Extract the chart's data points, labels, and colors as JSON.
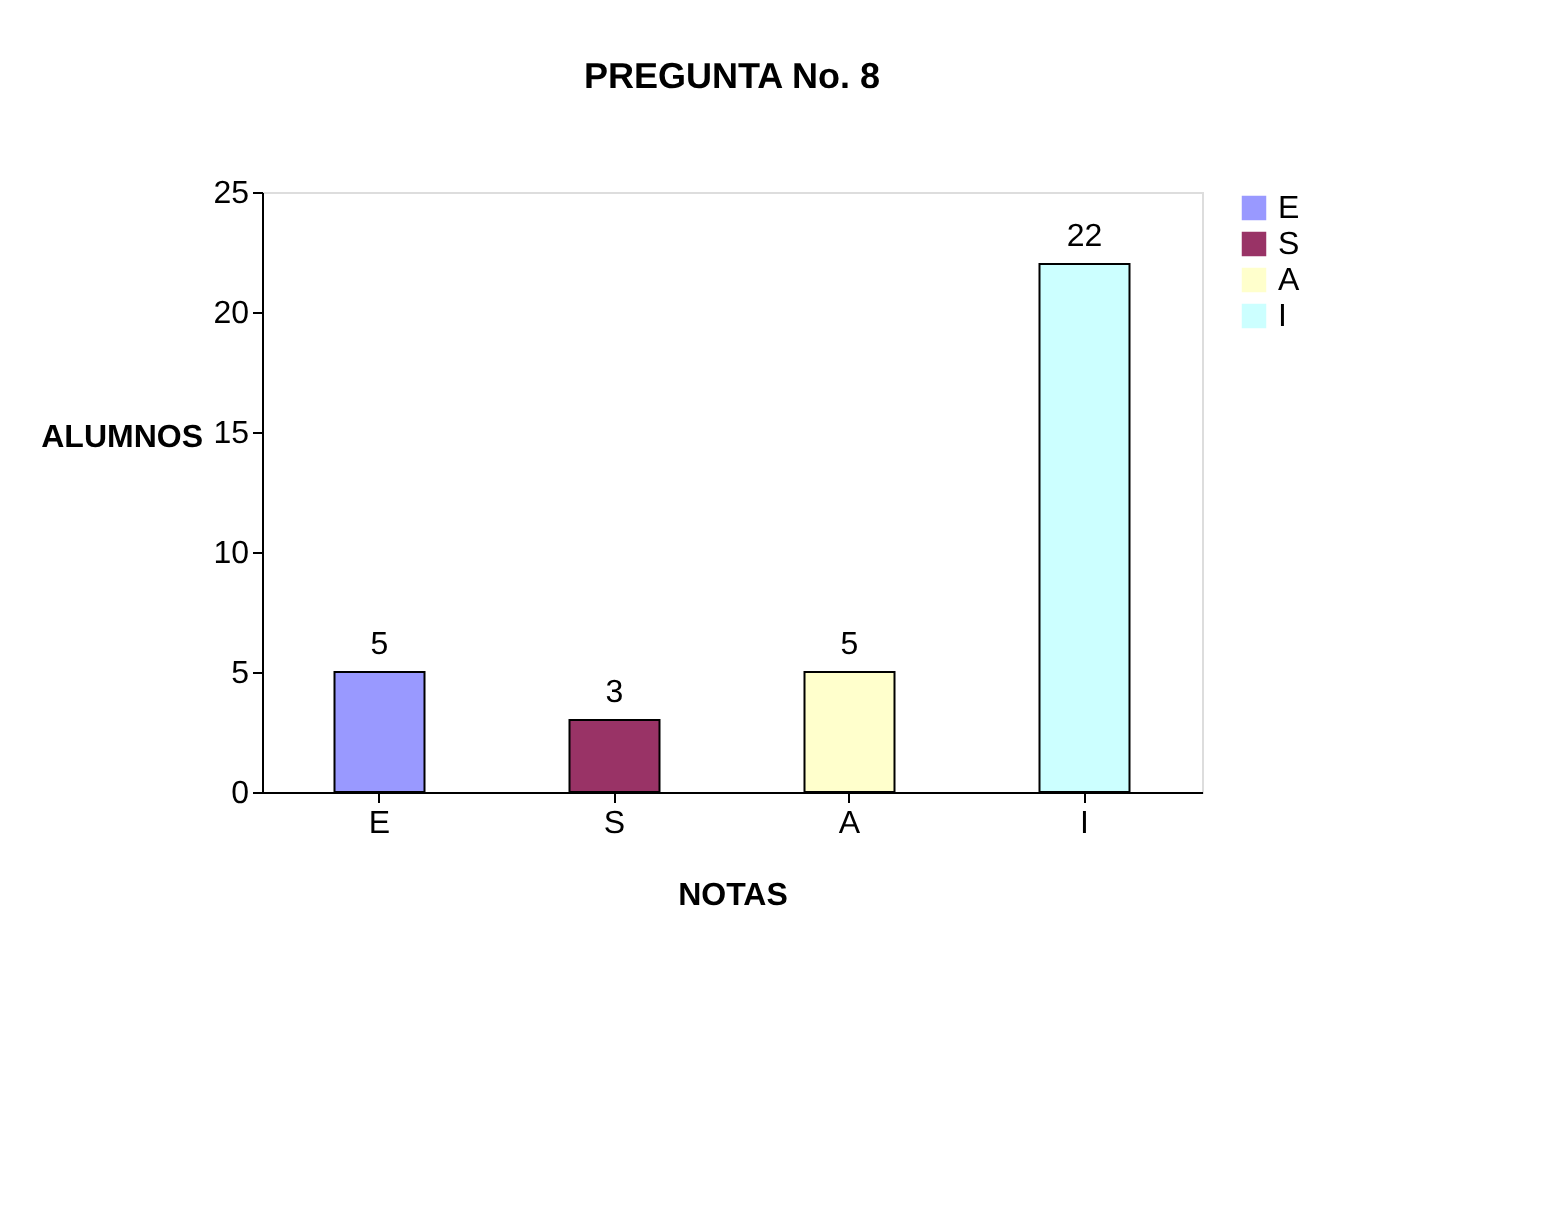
{
  "chart_data": {
    "type": "bar",
    "title": "PREGUNTA No. 8",
    "xlabel": "NOTAS",
    "ylabel": "ALUMNOS",
    "categories": [
      "E",
      "S",
      "A",
      "I"
    ],
    "series": [
      {
        "name": "E",
        "color": "#9999ff",
        "values": [
          5,
          null,
          null,
          null
        ]
      },
      {
        "name": "S",
        "color": "#993366",
        "values": [
          null,
          3,
          null,
          null
        ]
      },
      {
        "name": "A",
        "color": "#ffffcc",
        "values": [
          null,
          null,
          5,
          null
        ]
      },
      {
        "name": "I",
        "color": "#ccffff",
        "values": [
          null,
          null,
          null,
          22
        ]
      }
    ],
    "ylim": [
      0,
      25
    ],
    "yticks": [
      0,
      5,
      10,
      15,
      20,
      25
    ],
    "data_labels": true,
    "grid": false,
    "legend": "right"
  }
}
